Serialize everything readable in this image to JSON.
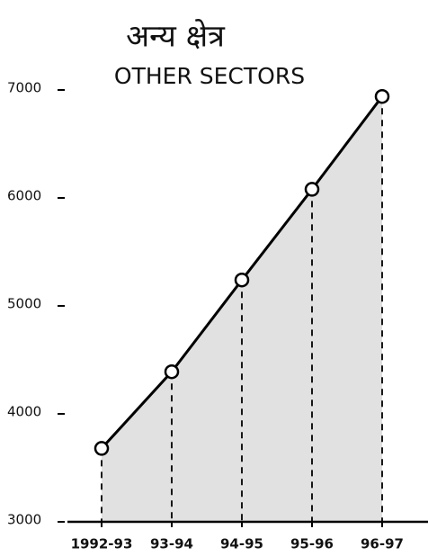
{
  "chart_data": {
    "type": "line",
    "title": "अन्य क्षेत्र",
    "subtitle": "OTHER SECTORS",
    "categories": [
      "1992-93",
      "93-94",
      "94-95",
      "95-96",
      "96-97"
    ],
    "values": [
      3680,
      4390,
      5240,
      6080,
      6940
    ],
    "color": "#000000",
    "area_color": "#d9d9d9",
    "ylim": [
      3000,
      7000
    ],
    "yticks": [
      3000,
      4000,
      5000,
      6000,
      7000
    ]
  }
}
